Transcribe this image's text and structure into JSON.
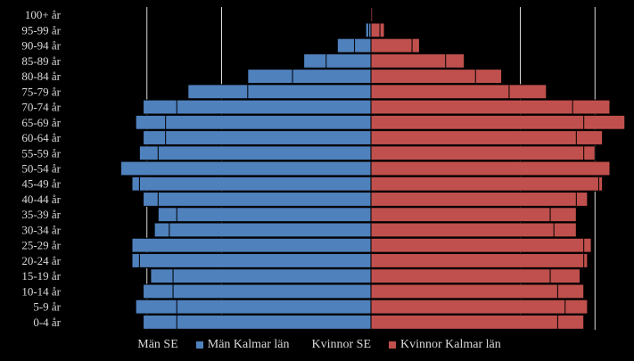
{
  "chart_data": {
    "type": "bar",
    "orientation": "horizontal",
    "layout": "population-pyramid",
    "categories": [
      "0-4 år",
      "5-9 år",
      "10-14 år",
      "15-19 år",
      "20-24 år",
      "25-29 år",
      "30-34 år",
      "35-39 år",
      "40-44 år",
      "45-49 år",
      "50-54 år",
      "55-59 år",
      "60-64 år",
      "65-69 år",
      "70-74 år",
      "75-79 år",
      "80-84 år",
      "85-89 år",
      "90-94 år",
      "95-99 år",
      "100+ år"
    ],
    "units": "percent of population (estimated)",
    "xlim": [
      -3.2,
      3.2
    ],
    "series": [
      {
        "name": "Män SE",
        "side": "left",
        "style": "outline",
        "values": [
          3.05,
          3.15,
          3.05,
          2.95,
          3.2,
          3.1,
          2.9,
          2.85,
          3.05,
          3.2,
          3.3,
          3.1,
          3.05,
          3.15,
          3.05,
          2.45,
          1.65,
          0.9,
          0.45,
          0.07,
          0.01
        ]
      },
      {
        "name": "Män Kalmar län",
        "side": "left",
        "style": "filled",
        "values": [
          2.6,
          2.6,
          2.65,
          2.65,
          3.1,
          3.2,
          2.7,
          2.6,
          2.85,
          3.1,
          3.35,
          2.85,
          2.75,
          2.75,
          2.6,
          1.65,
          1.05,
          0.6,
          0.22,
          0.03,
          0.0
        ]
      },
      {
        "name": "Kvinnor SE",
        "side": "right",
        "style": "outline",
        "values": [
          2.85,
          2.9,
          2.85,
          2.8,
          2.9,
          2.95,
          2.75,
          2.75,
          2.9,
          3.1,
          3.2,
          3.0,
          3.1,
          3.4,
          3.2,
          2.35,
          1.75,
          1.25,
          0.65,
          0.18,
          0.02
        ]
      },
      {
        "name": "Kvinnor Kalmar län",
        "side": "right",
        "style": "filled",
        "values": [
          2.5,
          2.6,
          2.5,
          2.4,
          2.85,
          2.85,
          2.45,
          2.4,
          2.75,
          3.05,
          3.2,
          2.85,
          2.75,
          2.85,
          2.7,
          1.85,
          1.4,
          1.0,
          0.55,
          0.12,
          0.0
        ]
      }
    ],
    "grid": true,
    "legend_position": "bottom",
    "colors": {
      "background": "#000000",
      "male_fill": "#4f81bd",
      "female_fill": "#c0504d",
      "gridline": "#d9d9d9",
      "text": "#d9d9d9"
    }
  },
  "legend": {
    "men_se": "Män SE",
    "men_county": "Män Kalmar län",
    "women_se": "Kvinnor SE",
    "women_county": "Kvinnor Kalmar län"
  }
}
